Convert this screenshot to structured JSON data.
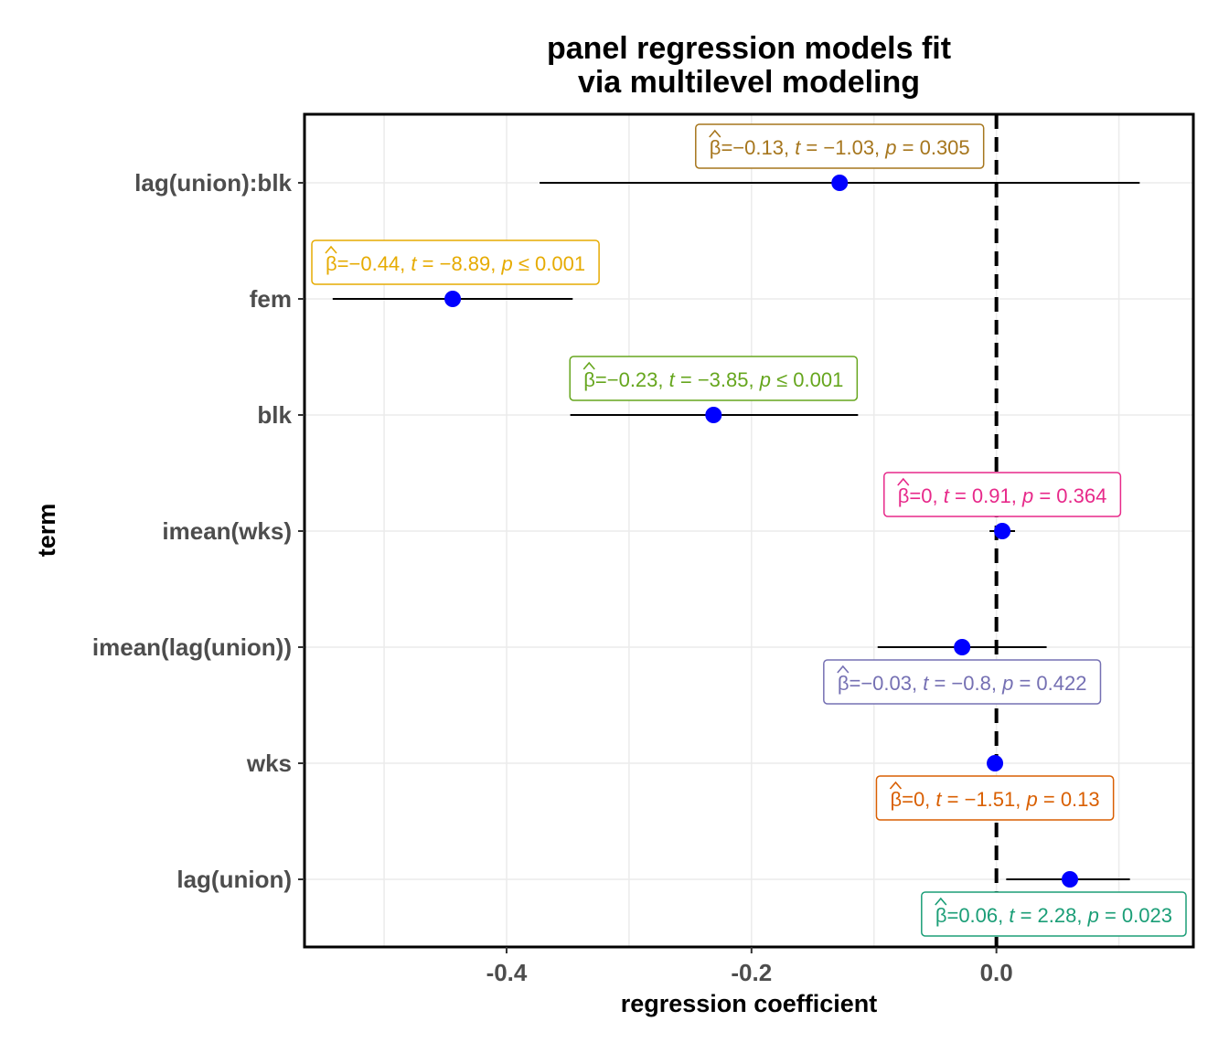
{
  "title_lines": [
    "panel regression models fit",
    "via multilevel modeling"
  ],
  "chart_data": {
    "type": "scatter",
    "subtype": "dot-and-whisker coefficient plot",
    "title": "panel regression models fit via multilevel modeling",
    "xlabel": "regression coefficient",
    "ylabel": "term",
    "xlim": [
      -0.565,
      0.1608
    ],
    "x_ticks": [
      -0.4,
      -0.2,
      0.0
    ],
    "x_tick_labels": [
      "-0.4",
      "-0.2",
      "0.0"
    ],
    "reference_line": 0,
    "grid": true,
    "point_color": "#0000ff",
    "terms": [
      {
        "term": "lag(union):blk",
        "estimate": -0.128,
        "conf_low": -0.373,
        "conf_high": 0.117,
        "label": {
          "prefix": "=−",
          "beta": "0.13",
          "t": "−1.03",
          "p_op": "=",
          "p": "0.305"
        },
        "color": "#a6761d",
        "label_pos": "above"
      },
      {
        "term": "fem",
        "estimate": -0.444,
        "conf_low": -0.542,
        "conf_high": -0.346,
        "label": {
          "prefix": "=−",
          "beta": "0.44",
          "t": "−8.89",
          "p_op": "≤",
          "p": "0.001"
        },
        "color": "#e6ab02",
        "label_pos": "above"
      },
      {
        "term": "blk",
        "estimate": -0.231,
        "conf_low": -0.348,
        "conf_high": -0.113,
        "label": {
          "prefix": "=−",
          "beta": "0.23",
          "t": "−3.85",
          "p_op": "≤",
          "p": "0.001"
        },
        "color": "#66a61e",
        "label_pos": "above"
      },
      {
        "term": "imean(wks)",
        "estimate": 0.0048,
        "conf_low": -0.0056,
        "conf_high": 0.0152,
        "label": {
          "prefix": "=",
          "beta": "0",
          "t": "0.91",
          "p_op": "=",
          "p": "0.364"
        },
        "color": "#e7298a",
        "label_pos": "above"
      },
      {
        "term": "imean(lag(union))",
        "estimate": -0.028,
        "conf_low": -0.097,
        "conf_high": 0.041,
        "label": {
          "prefix": "=−",
          "beta": "0.03",
          "t": "−0.8",
          "p_op": "=",
          "p": "0.422"
        },
        "color": "#7570b3",
        "label_pos": "below"
      },
      {
        "term": "wks",
        "estimate": -0.0012,
        "conf_low": -0.0028,
        "conf_high": 0.0004,
        "label": {
          "prefix": "=",
          "beta": "0",
          "t": "−1.51",
          "p_op": "=",
          "p": "0.13"
        },
        "color": "#d95f02",
        "label_pos": "below"
      },
      {
        "term": "lag(union)",
        "estimate": 0.06,
        "conf_low": 0.008,
        "conf_high": 0.109,
        "label": {
          "prefix": "=",
          "beta": "0.06",
          "t": "2.28",
          "p_op": "=",
          "p": "0.023"
        },
        "color": "#1b9e77",
        "label_pos": "below"
      }
    ]
  }
}
